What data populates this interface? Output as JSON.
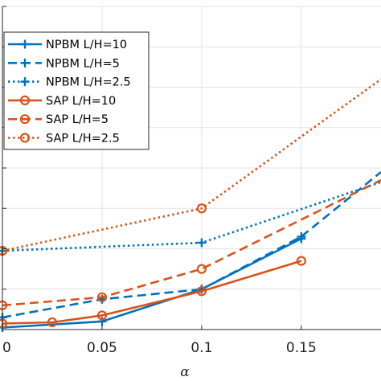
{
  "chart_data": {
    "type": "line",
    "xlabel": "α",
    "ylabel": "",
    "title": "",
    "xlim": [
      0,
      0.19
    ],
    "ylim": [
      0,
      0.8
    ],
    "xticks": [
      0,
      0.05,
      0.1,
      0.15
    ],
    "xtick_labels": [
      "0",
      "0.05",
      "0.1",
      "0.15"
    ],
    "yticks": [
      0,
      0.1,
      0.2,
      0.3,
      0.4,
      0.5,
      0.6,
      0.7,
      0.8
    ],
    "grid": true,
    "legend_position": "top-left",
    "colors": {
      "npbm": "#0072BD",
      "sap": "#D95319"
    },
    "series": [
      {
        "name": "NPBM L/H=10",
        "method": "npbm",
        "line": "solid",
        "marker": "plus",
        "x": [
          0,
          0.05,
          0.1,
          0.15
        ],
        "y": [
          0.005,
          0.02,
          0.1,
          0.225
        ]
      },
      {
        "name": "NPBM L/H=5",
        "method": "npbm",
        "line": "dashed",
        "marker": "plus",
        "x": [
          0,
          0.05,
          0.1,
          0.15,
          0.19
        ],
        "y": [
          0.03,
          0.075,
          0.1,
          0.23,
          0.39
        ]
      },
      {
        "name": "NPBM L/H=2.5",
        "method": "npbm",
        "line": "dotted",
        "marker": "plus",
        "x": [
          0,
          0.1,
          0.19
        ],
        "y": [
          0.195,
          0.215,
          0.365
        ]
      },
      {
        "name": "SAP L/H=10",
        "method": "sap",
        "line": "solid",
        "marker": "circle",
        "x": [
          0,
          0.025,
          0.05,
          0.1,
          0.15
        ],
        "y": [
          0.015,
          0.018,
          0.035,
          0.095,
          0.17
        ]
      },
      {
        "name": "SAP L/H=5",
        "method": "sap",
        "line": "dashed",
        "marker": "circle",
        "x": [
          0,
          0.05,
          0.1,
          0.19
        ],
        "y": [
          0.06,
          0.08,
          0.15,
          0.37
        ]
      },
      {
        "name": "SAP L/H=2.5",
        "method": "sap",
        "line": "dotted",
        "marker": "circle",
        "x": [
          0,
          0.1,
          0.19
        ],
        "y": [
          0.195,
          0.3,
          0.62
        ]
      }
    ]
  }
}
